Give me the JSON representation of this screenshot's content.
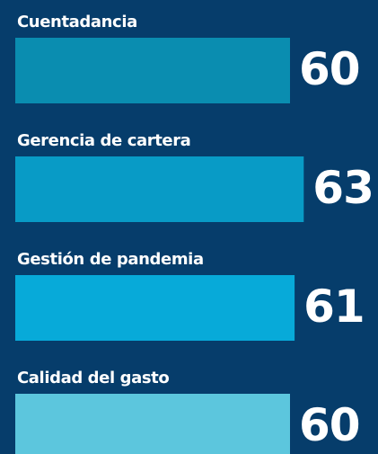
{
  "chart_data": {
    "type": "bar",
    "orientation": "horizontal",
    "categories": [
      "Cuentadancia",
      "Gerencia de cartera",
      "Gestión de pandemia",
      "Calidad del gasto"
    ],
    "values": [
      60,
      63,
      61,
      60
    ],
    "colors": [
      "#0a8db0",
      "#089bc6",
      "#07aad9",
      "#5cc6dd"
    ]
  }
}
